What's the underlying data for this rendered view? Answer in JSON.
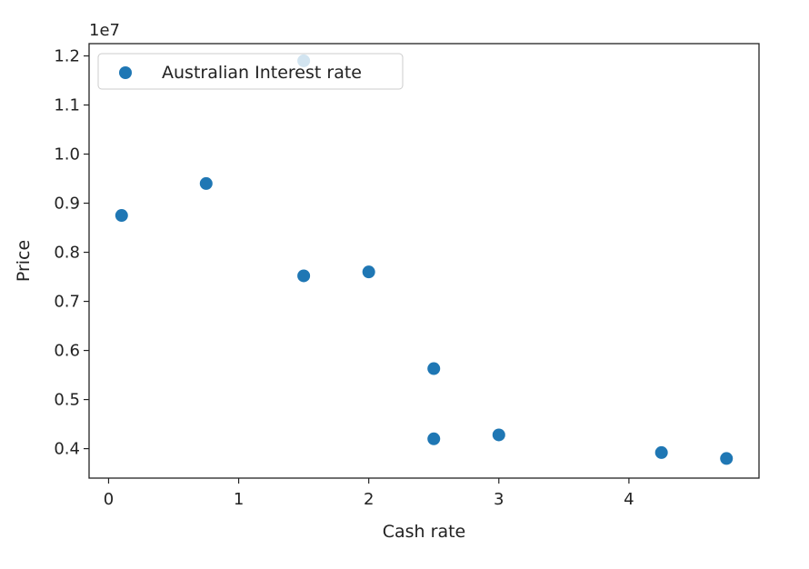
{
  "chart_data": {
    "type": "scatter",
    "title": "",
    "xlabel": "Cash rate",
    "ylabel": "Price",
    "y_offset_label": "1e7",
    "xlim": [
      -0.15,
      5.0
    ],
    "ylim": [
      3.4,
      12.25
    ],
    "x_ticks": [
      0,
      1,
      2,
      3,
      4
    ],
    "y_ticks": [
      0.4,
      0.5,
      0.6,
      0.7,
      0.8,
      0.9,
      1.0,
      1.1,
      1.2
    ],
    "y_tick_scale": 10,
    "grid": false,
    "legend_position": "upper left",
    "series": [
      {
        "name": "Australian Interest rate",
        "color": "#1f77b4",
        "x": [
          0.1,
          0.75,
          1.5,
          1.5,
          2.0,
          2.5,
          2.5,
          3.0,
          4.25,
          4.75
        ],
        "y": [
          8.75,
          9.4,
          11.9,
          7.52,
          7.6,
          5.63,
          4.2,
          4.28,
          3.92,
          3.8
        ]
      }
    ]
  }
}
